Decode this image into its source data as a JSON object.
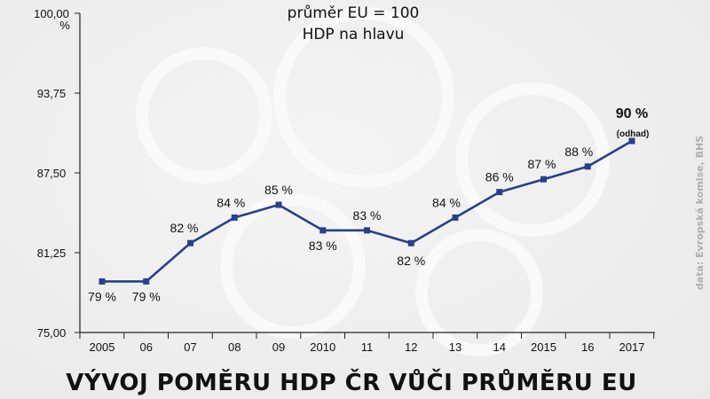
{
  "chart_data": {
    "type": "line",
    "title": "VÝVOJ POMĚRU HDP ČR VŮČI PRŮMĚRU EU",
    "subtitle": [
      "průměr EU = 100",
      "HDP na hlavu"
    ],
    "ylim": [
      75,
      100
    ],
    "yticks": [
      "75,00",
      "81,25",
      "87,50",
      "93,75",
      "100,00"
    ],
    "yunit": "%",
    "categories": [
      "2005",
      "06",
      "07",
      "08",
      "09",
      "2010",
      "11",
      "12",
      "13",
      "14",
      "15",
      "16",
      "2017"
    ],
    "tick_labels": [
      "2005",
      "06",
      "07",
      "08",
      "09",
      "2010",
      "11",
      "12",
      "13",
      "14",
      "2015",
      "16",
      "2017"
    ],
    "values": [
      79,
      79,
      82,
      84,
      85,
      83,
      83,
      82,
      84,
      86,
      87,
      88,
      90
    ],
    "point_labels": [
      "79 %",
      "79 %",
      "82 %",
      "84 %",
      "85 %",
      "83 %",
      "83 %",
      "82 %",
      "84 %",
      "86 %",
      "87 %",
      "88 %",
      "90 %"
    ],
    "annotation": "(odhad)",
    "source": "data: Evropská komise, BHS",
    "line_color": "#26408b",
    "grid": false
  }
}
